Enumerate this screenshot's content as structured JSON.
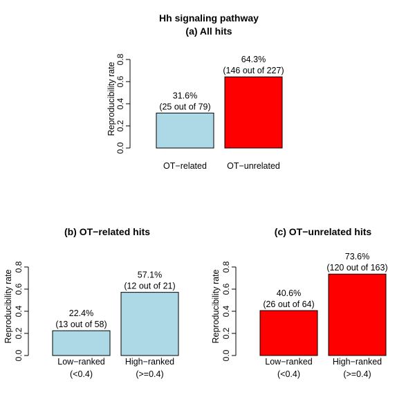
{
  "figure_title": "Hh signaling pathway",
  "chart_data": [
    {
      "type": "bar",
      "title": "(a) All hits",
      "ylabel": "Reproducibility rate",
      "xlabel": "",
      "ylim": [
        0,
        0.8
      ],
      "yticks": [
        "0.0",
        "0.2",
        "0.4",
        "0.6",
        "0.8"
      ],
      "categories": [
        [
          "OT−related"
        ],
        [
          "OT−unrelated"
        ]
      ],
      "values": [
        0.316,
        0.643
      ],
      "bar_labels": [
        [
          "31.6%",
          "(25 out of 79)"
        ],
        [
          "64.3%",
          "(146 out of 227)"
        ]
      ],
      "colors": [
        "#add8e6",
        "#ff0000"
      ]
    },
    {
      "type": "bar",
      "title": "(b) OT−related hits",
      "ylabel": "Reproducibility rate",
      "xlabel": "",
      "ylim": [
        0,
        0.8
      ],
      "yticks": [
        "0.0",
        "0.2",
        "0.4",
        "0.6",
        "0.8"
      ],
      "categories": [
        [
          "Low−ranked",
          "(<0.4)"
        ],
        [
          "High−ranked",
          "(>=0.4)"
        ]
      ],
      "values": [
        0.224,
        0.571
      ],
      "bar_labels": [
        [
          "22.4%",
          "(13 out of 58)"
        ],
        [
          "57.1%",
          "(12 out of 21)"
        ]
      ],
      "colors": [
        "#add8e6",
        "#add8e6"
      ]
    },
    {
      "type": "bar",
      "title": "(c) OT−unrelated hits",
      "ylabel": "Reproducibility rate",
      "xlabel": "",
      "ylim": [
        0,
        0.8
      ],
      "yticks": [
        "0.0",
        "0.2",
        "0.4",
        "0.6",
        "0.8"
      ],
      "categories": [
        [
          "Low−ranked",
          "(<0.4)"
        ],
        [
          "High−ranked",
          "(>=0.4)"
        ]
      ],
      "values": [
        0.406,
        0.736
      ],
      "bar_labels": [
        [
          "40.6%",
          "(26 out of 64)"
        ],
        [
          "73.6%",
          "(120 out of 163)"
        ]
      ],
      "colors": [
        "#ff0000",
        "#ff0000"
      ]
    }
  ]
}
